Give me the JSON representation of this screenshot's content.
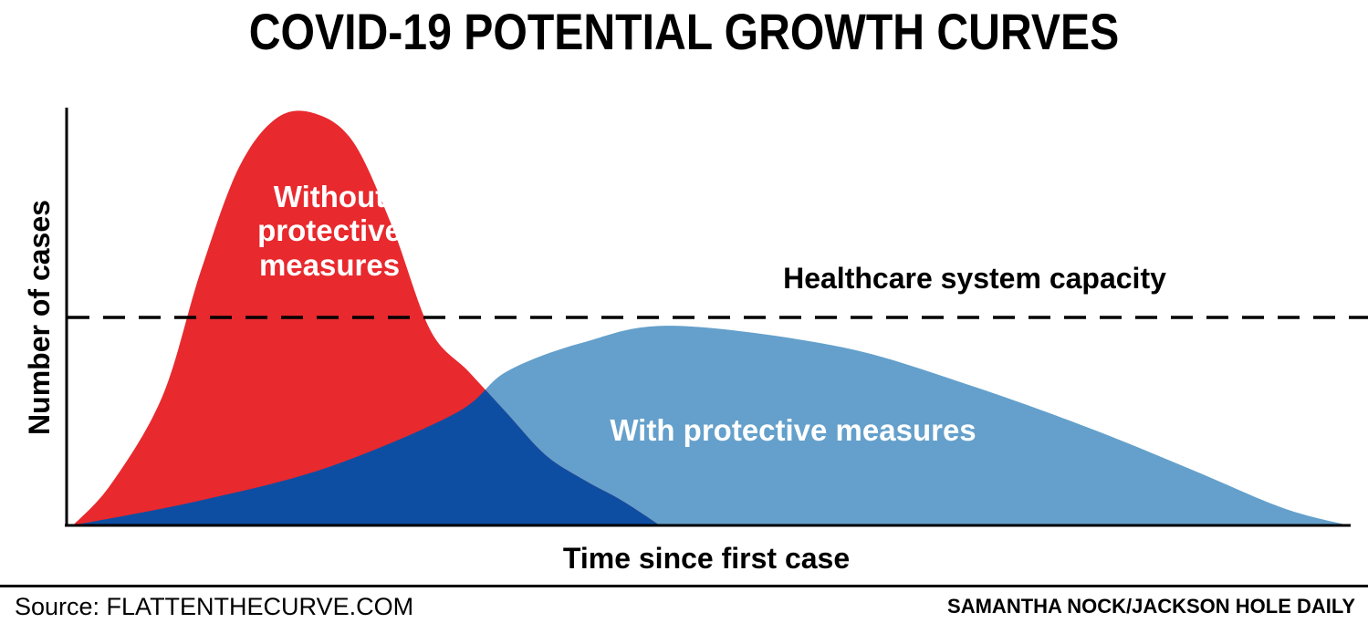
{
  "header": {
    "title": "COVID-19 POTENTIAL GROWTH CURVES"
  },
  "chart_data": {
    "type": "area",
    "title": "COVID-19 POTENTIAL GROWTH CURVES",
    "xlabel": "Time since first case",
    "ylabel": "Number of cases",
    "xlim": [
      0,
      100
    ],
    "ylim": [
      0,
      100
    ],
    "grid": false,
    "legend": "none",
    "colors": {
      "without": "#e8292e",
      "with": "#64a0cb",
      "overlap": "#0e4ea2",
      "axis": "#000000",
      "text_on_curve": "#ffffff"
    },
    "series": [
      {
        "name": "Without protective measures",
        "x": [
          0,
          3,
          7,
          10,
          13,
          16,
          19,
          22,
          25,
          28,
          31,
          34,
          37,
          40,
          43,
          46
        ],
        "values": [
          0,
          10,
          31,
          61,
          86,
          98,
          99,
          92,
          72,
          47,
          37,
          27,
          17,
          11,
          6,
          0
        ]
      },
      {
        "name": "With protective measures",
        "x": [
          0,
          10,
          20,
          30,
          34,
          40,
          47,
          60,
          70,
          80,
          88,
          95,
          100
        ],
        "values": [
          0,
          6,
          14,
          27,
          37,
          44,
          48,
          43,
          34,
          23,
          13,
          4,
          0
        ]
      }
    ],
    "reference_line": {
      "label": "Healthcare system capacity",
      "value": 50
    },
    "annotations": {
      "without_line1": "Without",
      "without_line2": "protective",
      "without_line3": "measures",
      "with_label": "With protective measures"
    }
  },
  "footer": {
    "source": "Source: FLATTENTHECURVE.COM",
    "credit_author": "SAMANTHA NOCK/",
    "credit_pub": "JACKSON HOLE DAILY"
  }
}
